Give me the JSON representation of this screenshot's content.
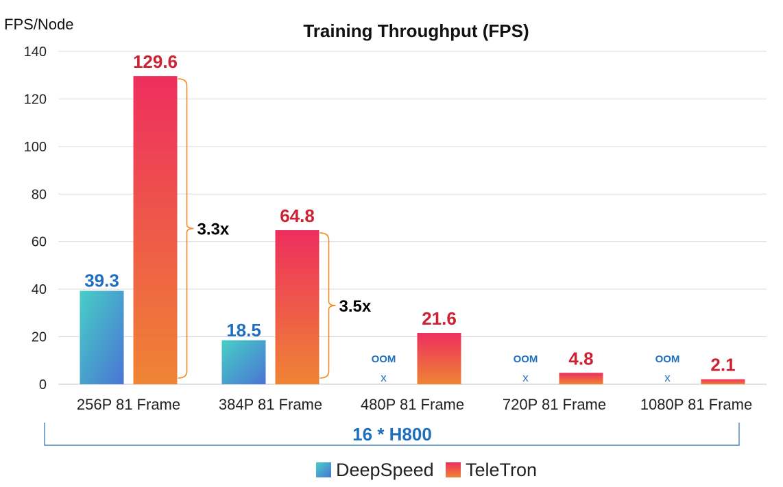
{
  "chart_data": {
    "type": "bar",
    "title": "Training Throughput (FPS)",
    "ylabel": "FPS/Node",
    "xlabel": "",
    "ylim": [
      0,
      140
    ],
    "yticks": [
      0,
      20,
      40,
      60,
      80,
      100,
      120,
      140
    ],
    "grid": true,
    "categories": [
      "256P 81 Frame",
      "384P 81 Frame",
      "480P 81 Frame",
      "720P 81 Frame",
      "1080P 81 Frame"
    ],
    "series": [
      {
        "name": "DeepSpeed",
        "values": [
          39.3,
          18.5,
          null,
          null,
          null
        ],
        "labels": [
          "39.3",
          "18.5",
          "OOM",
          "OOM",
          "OOM"
        ],
        "missing_marker": "x",
        "color_top": "#47cfc6",
        "color_bottom": "#4a74d4",
        "label_color": "#1f6fbf"
      },
      {
        "name": "TeleTron",
        "values": [
          129.6,
          64.8,
          21.6,
          4.8,
          2.1
        ],
        "labels": [
          "129.6",
          "64.8",
          "21.6",
          "4.8",
          "2.1"
        ],
        "color_top": "#ee2e5e",
        "color_bottom": "#ef8434",
        "label_color": "#cc2233"
      }
    ],
    "annotations": [
      {
        "text": "3.3x",
        "category_index": 0
      },
      {
        "text": "3.5x",
        "category_index": 1
      }
    ],
    "footnote": "16 * H800",
    "legend_position": "bottom-center"
  },
  "colors": {
    "grid": "#d9d9e3",
    "axis": "#bfbfbf",
    "bracket": "#f08a24",
    "footnote": "#1f6fbf",
    "footnote_bracket": "#2b6cb0"
  }
}
